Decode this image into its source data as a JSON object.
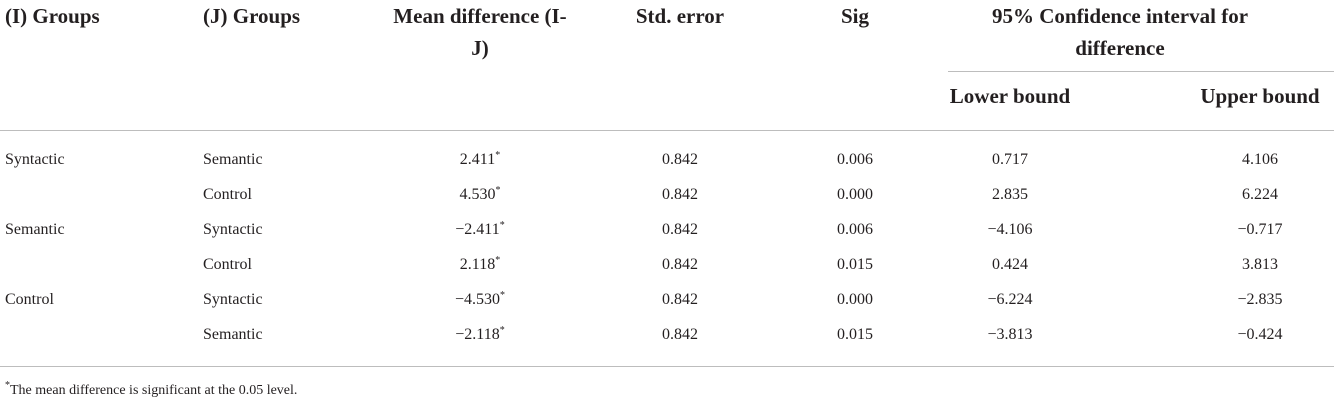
{
  "table": {
    "headers": {
      "i_group": "(I) Groups",
      "j_group": "(J) Groups",
      "mean_difference": "Mean difference (I-J)",
      "std_error": "Std. error",
      "sig": "Sig",
      "confidence_interval": "95% Confidence interval for difference",
      "lower_bound": "Lower bound",
      "upper_bound": "Upper bound"
    },
    "rows": [
      {
        "i_group": "Syntactic",
        "j_group": "Semantic",
        "mean_difference": "2.411",
        "mark": "*",
        "std_error": "0.842",
        "sig": "0.006",
        "lower_bound": "0.717",
        "upper_bound": "4.106"
      },
      {
        "i_group": null,
        "j_group": "Control",
        "mean_difference": "4.530",
        "mark": "*",
        "std_error": "0.842",
        "sig": "0.000",
        "lower_bound": "2.835",
        "upper_bound": "6.224"
      },
      {
        "i_group": "Semantic",
        "j_group": "Syntactic",
        "mean_difference": "−2.411",
        "mark": "*",
        "std_error": "0.842",
        "sig": "0.006",
        "lower_bound": "−4.106",
        "upper_bound": "−0.717"
      },
      {
        "i_group": null,
        "j_group": "Control",
        "mean_difference": "2.118",
        "mark": "*",
        "std_error": "0.842",
        "sig": "0.015",
        "lower_bound": "0.424",
        "upper_bound": "3.813"
      },
      {
        "i_group": "Control",
        "j_group": "Syntactic",
        "mean_difference": "−4.530",
        "mark": "*",
        "std_error": "0.842",
        "sig": "0.000",
        "lower_bound": "−6.224",
        "upper_bound": "−2.835"
      },
      {
        "i_group": null,
        "j_group": "Semantic",
        "mean_difference": "−2.118",
        "mark": "*",
        "std_error": "0.842",
        "sig": "0.015",
        "lower_bound": "−3.813",
        "upper_bound": "−0.424"
      }
    ],
    "footnote": {
      "mark": "*",
      "text": "The mean difference is significant at the 0.05 level."
    }
  }
}
